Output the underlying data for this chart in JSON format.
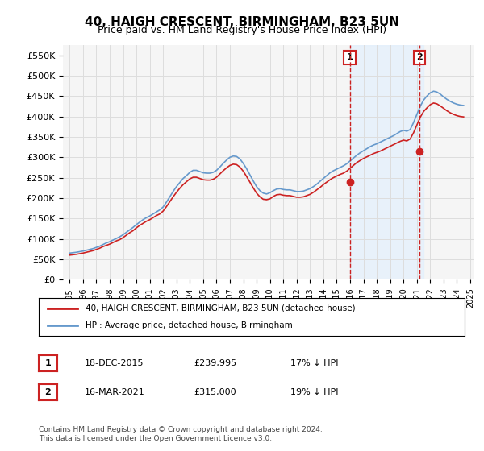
{
  "title": "40, HAIGH CRESCENT, BIRMINGHAM, B23 5UN",
  "subtitle": "Price paid vs. HM Land Registry's House Price Index (HPI)",
  "hpi_color": "#6699cc",
  "price_color": "#cc2222",
  "dashed_color": "#cc2222",
  "background_color": "#ffffff",
  "plot_bg_color": "#f5f5f5",
  "grid_color": "#dddddd",
  "ylim": [
    0,
    575000
  ],
  "yticks": [
    0,
    50000,
    100000,
    150000,
    200000,
    250000,
    300000,
    350000,
    400000,
    450000,
    500000,
    550000
  ],
  "ytick_labels": [
    "£0",
    "£50K",
    "£100K",
    "£150K",
    "£200K",
    "£250K",
    "£300K",
    "£350K",
    "£400K",
    "£450K",
    "£500K",
    "£550K"
  ],
  "sale1_date": 2015.97,
  "sale1_price": 239995,
  "sale1_label": "1",
  "sale2_date": 2021.21,
  "sale2_price": 315000,
  "sale2_label": "2",
  "legend_line1": "40, HAIGH CRESCENT, BIRMINGHAM, B23 5UN (detached house)",
  "legend_line2": "HPI: Average price, detached house, Birmingham",
  "table_row1": [
    "1",
    "18-DEC-2015",
    "£239,995",
    "17% ↓ HPI"
  ],
  "table_row2": [
    "2",
    "16-MAR-2021",
    "£315,000",
    "19% ↓ HPI"
  ],
  "footer": "Contains HM Land Registry data © Crown copyright and database right 2024.\nThis data is licensed under the Open Government Licence v3.0.",
  "hpi_data_x": [
    1995.0,
    1995.25,
    1995.5,
    1995.75,
    1996.0,
    1996.25,
    1996.5,
    1996.75,
    1997.0,
    1997.25,
    1997.5,
    1997.75,
    1998.0,
    1998.25,
    1998.5,
    1998.75,
    1999.0,
    1999.25,
    1999.5,
    1999.75,
    2000.0,
    2000.25,
    2000.5,
    2000.75,
    2001.0,
    2001.25,
    2001.5,
    2001.75,
    2002.0,
    2002.25,
    2002.5,
    2002.75,
    2003.0,
    2003.25,
    2003.5,
    2003.75,
    2004.0,
    2004.25,
    2004.5,
    2004.75,
    2005.0,
    2005.25,
    2005.5,
    2005.75,
    2006.0,
    2006.25,
    2006.5,
    2006.75,
    2007.0,
    2007.25,
    2007.5,
    2007.75,
    2008.0,
    2008.25,
    2008.5,
    2008.75,
    2009.0,
    2009.25,
    2009.5,
    2009.75,
    2010.0,
    2010.25,
    2010.5,
    2010.75,
    2011.0,
    2011.25,
    2011.5,
    2011.75,
    2012.0,
    2012.25,
    2012.5,
    2012.75,
    2013.0,
    2013.25,
    2013.5,
    2013.75,
    2014.0,
    2014.25,
    2014.5,
    2014.75,
    2015.0,
    2015.25,
    2015.5,
    2015.75,
    2016.0,
    2016.25,
    2016.5,
    2016.75,
    2017.0,
    2017.25,
    2017.5,
    2017.75,
    2018.0,
    2018.25,
    2018.5,
    2018.75,
    2019.0,
    2019.25,
    2019.5,
    2019.75,
    2020.0,
    2020.25,
    2020.5,
    2020.75,
    2021.0,
    2021.25,
    2021.5,
    2021.75,
    2022.0,
    2022.25,
    2022.5,
    2022.75,
    2023.0,
    2023.25,
    2023.5,
    2023.75,
    2024.0,
    2024.25,
    2024.5
  ],
  "hpi_data_y": [
    65000,
    66000,
    67000,
    68500,
    70000,
    72000,
    74000,
    76000,
    79000,
    82000,
    86000,
    90000,
    93000,
    97000,
    101000,
    105000,
    110000,
    116000,
    122000,
    128000,
    135000,
    141000,
    147000,
    152000,
    156000,
    161000,
    166000,
    171000,
    178000,
    190000,
    203000,
    216000,
    228000,
    238000,
    248000,
    255000,
    263000,
    268000,
    268000,
    265000,
    262000,
    261000,
    261000,
    263000,
    268000,
    276000,
    285000,
    293000,
    300000,
    303000,
    302000,
    296000,
    285000,
    272000,
    257000,
    242000,
    228000,
    218000,
    212000,
    210000,
    213000,
    218000,
    222000,
    223000,
    221000,
    220000,
    220000,
    218000,
    216000,
    216000,
    217000,
    220000,
    223000,
    228000,
    234000,
    241000,
    248000,
    255000,
    262000,
    267000,
    271000,
    275000,
    279000,
    284000,
    291000,
    298000,
    305000,
    311000,
    316000,
    321000,
    326000,
    330000,
    333000,
    337000,
    341000,
    345000,
    349000,
    353000,
    358000,
    363000,
    366000,
    364000,
    368000,
    385000,
    405000,
    425000,
    440000,
    450000,
    458000,
    462000,
    460000,
    455000,
    448000,
    442000,
    437000,
    433000,
    430000,
    428000,
    427000
  ],
  "price_data_x": [
    1995.0,
    1995.25,
    1995.5,
    1995.75,
    1996.0,
    1996.25,
    1996.5,
    1996.75,
    1997.0,
    1997.25,
    1997.5,
    1997.75,
    1998.0,
    1998.25,
    1998.5,
    1998.75,
    1999.0,
    1999.25,
    1999.5,
    1999.75,
    2000.0,
    2000.25,
    2000.5,
    2000.75,
    2001.0,
    2001.25,
    2001.5,
    2001.75,
    2002.0,
    2002.25,
    2002.5,
    2002.75,
    2003.0,
    2003.25,
    2003.5,
    2003.75,
    2004.0,
    2004.25,
    2004.5,
    2004.75,
    2005.0,
    2005.25,
    2005.5,
    2005.75,
    2006.0,
    2006.25,
    2006.5,
    2006.75,
    2007.0,
    2007.25,
    2007.5,
    2007.75,
    2008.0,
    2008.25,
    2008.5,
    2008.75,
    2009.0,
    2009.25,
    2009.5,
    2009.75,
    2010.0,
    2010.25,
    2010.5,
    2010.75,
    2011.0,
    2011.25,
    2011.5,
    2011.75,
    2012.0,
    2012.25,
    2012.5,
    2012.75,
    2013.0,
    2013.25,
    2013.5,
    2013.75,
    2014.0,
    2014.25,
    2014.5,
    2014.75,
    2015.0,
    2015.25,
    2015.5,
    2015.75,
    2016.0,
    2016.25,
    2016.5,
    2016.75,
    2017.0,
    2017.25,
    2017.5,
    2017.75,
    2018.0,
    2018.25,
    2018.5,
    2018.75,
    2019.0,
    2019.25,
    2019.5,
    2019.75,
    2020.0,
    2020.25,
    2020.5,
    2020.75,
    2021.0,
    2021.25,
    2021.5,
    2021.75,
    2022.0,
    2022.25,
    2022.5,
    2022.75,
    2023.0,
    2023.25,
    2023.5,
    2023.75,
    2024.0,
    2024.25,
    2024.5
  ],
  "price_data_y": [
    60000,
    61000,
    62000,
    63500,
    65000,
    67000,
    69000,
    71000,
    74000,
    77000,
    81000,
    84000,
    87000,
    91000,
    95000,
    98000,
    103000,
    109000,
    115000,
    120000,
    127000,
    133000,
    138000,
    143000,
    147000,
    152000,
    157000,
    161000,
    168000,
    179000,
    191000,
    203000,
    214000,
    224000,
    233000,
    240000,
    247000,
    251000,
    251000,
    248000,
    245000,
    244000,
    244000,
    246000,
    251000,
    259000,
    267000,
    274000,
    280000,
    283000,
    282000,
    276000,
    266000,
    253000,
    239000,
    225000,
    212000,
    203000,
    197000,
    196000,
    198000,
    204000,
    208000,
    209000,
    207000,
    206000,
    206000,
    204000,
    202000,
    202000,
    203000,
    206000,
    209000,
    214000,
    220000,
    226000,
    233000,
    239000,
    245000,
    250000,
    254000,
    258000,
    261000,
    266000,
    273000,
    280000,
    287000,
    292000,
    297000,
    301000,
    305000,
    309000,
    312000,
    315000,
    319000,
    323000,
    327000,
    331000,
    335000,
    339000,
    342000,
    340000,
    345000,
    360000,
    379000,
    398000,
    412000,
    421000,
    429000,
    433000,
    431000,
    426000,
    420000,
    414000,
    409000,
    405000,
    402000,
    400000,
    399000
  ],
  "shaded_region_start": 2016.0,
  "shaded_region_end": 2021.5,
  "xtick_years": [
    1995,
    1996,
    1997,
    1998,
    1999,
    2000,
    2001,
    2002,
    2003,
    2004,
    2005,
    2006,
    2007,
    2008,
    2009,
    2010,
    2011,
    2012,
    2013,
    2014,
    2015,
    2016,
    2017,
    2018,
    2019,
    2020,
    2021,
    2022,
    2023,
    2024,
    2025
  ]
}
